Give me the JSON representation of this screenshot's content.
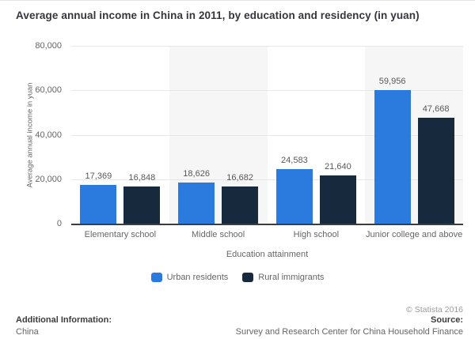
{
  "chart_data": {
    "type": "bar",
    "title": "Average annual income in China in 2011, by education and residency (in yuan)",
    "categories": [
      "Elementary school",
      "Middle school",
      "High school",
      "Junior college and above"
    ],
    "series": [
      {
        "name": "Urban residents",
        "color": "#2b7bde",
        "values": [
          17369,
          18626,
          24583,
          59956
        ]
      },
      {
        "name": "Rural immigrants",
        "color": "#16293d",
        "values": [
          16848,
          16682,
          21640,
          47668
        ]
      }
    ],
    "xlabel": "Education attainment",
    "ylabel": "Average annual income in yuan",
    "ylim": [
      0,
      80000
    ],
    "yticks": [
      0,
      20000,
      40000,
      60000,
      80000
    ],
    "grid": true,
    "legend_position": "bottom",
    "plot_band_color": "#f6f6f6",
    "gridline_color": "#e7e7e7",
    "axis_line_color": "#3d3d3d"
  },
  "footer": {
    "copyright": "© Statista 2016",
    "additional_info_label": "Additional Information:",
    "additional_info_value": "China",
    "source_label": "Source:",
    "source_value": "Survey and Research Center for China Household Finance"
  }
}
